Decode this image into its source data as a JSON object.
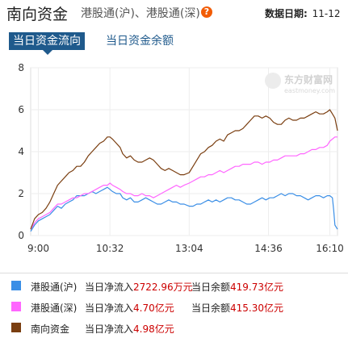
{
  "header": {
    "title": "南向资金",
    "subtitle": "港股通(沪)、港股通(深)",
    "help_icon_glyph": "?",
    "date_label": "数据日期:",
    "date_value": "11-12"
  },
  "tabs": [
    {
      "label": "当日资金流向",
      "active": true
    },
    {
      "label": "当日资金余额",
      "active": false
    }
  ],
  "watermark": {
    "cn": "东方财富网",
    "en": "eastmoney.com"
  },
  "legend": [
    {
      "name": "港股通(沪)",
      "flow_label": "当日净流入",
      "flow_value": "2722.96万元",
      "balance_label": "当日余额",
      "balance_value": "419.73亿元",
      "color": "#3a8ee6"
    },
    {
      "name": "港股通(深)",
      "flow_label": "当日净流入",
      "flow_value": "4.70亿元",
      "balance_label": "当日余额",
      "balance_value": "415.30亿元",
      "color": "#ff66ff"
    },
    {
      "name": "南向资金",
      "flow_label": "当日净流入",
      "flow_value": "4.98亿元",
      "balance_label": "",
      "balance_value": "",
      "color": "#7a3e10"
    }
  ],
  "chart_data": {
    "type": "line",
    "ylim": [
      0,
      8
    ],
    "yticks": [
      "0",
      "2",
      "4",
      "6",
      "8"
    ],
    "xlim": [
      0,
      240
    ],
    "xticks": [
      {
        "pos": 6,
        "label": "9:00"
      },
      {
        "pos": 62,
        "label": "10:32"
      },
      {
        "pos": 124,
        "label": "13:04"
      },
      {
        "pos": 186,
        "label": "14:36"
      },
      {
        "pos": 234,
        "label": "16:10"
      }
    ],
    "grid": true,
    "series": [
      {
        "name": "港股通(沪)",
        "color": "#3a8ee6",
        "points": [
          [
            0,
            0.2
          ],
          [
            3,
            0.5
          ],
          [
            6,
            0.7
          ],
          [
            9,
            0.8
          ],
          [
            12,
            0.9
          ],
          [
            15,
            1.0
          ],
          [
            18,
            1.2
          ],
          [
            21,
            1.4
          ],
          [
            24,
            1.3
          ],
          [
            27,
            1.5
          ],
          [
            30,
            1.6
          ],
          [
            33,
            1.7
          ],
          [
            36,
            1.9
          ],
          [
            39,
            1.9
          ],
          [
            42,
            1.9
          ],
          [
            45,
            2.0
          ],
          [
            48,
            2.1
          ],
          [
            51,
            2.0
          ],
          [
            54,
            2.1
          ],
          [
            57,
            2.2
          ],
          [
            60,
            2.3
          ],
          [
            62,
            2.2
          ],
          [
            64,
            2.1
          ],
          [
            67,
            2.0
          ],
          [
            70,
            2.0
          ],
          [
            72,
            1.8
          ],
          [
            75,
            1.7
          ],
          [
            78,
            1.8
          ],
          [
            81,
            1.6
          ],
          [
            84,
            1.6
          ],
          [
            87,
            1.7
          ],
          [
            90,
            1.8
          ],
          [
            93,
            1.7
          ],
          [
            96,
            1.6
          ],
          [
            99,
            1.5
          ],
          [
            102,
            1.5
          ],
          [
            105,
            1.6
          ],
          [
            108,
            1.7
          ],
          [
            111,
            1.6
          ],
          [
            114,
            1.6
          ],
          [
            117,
            1.5
          ],
          [
            120,
            1.5
          ],
          [
            124,
            1.4
          ],
          [
            127,
            1.4
          ],
          [
            130,
            1.5
          ],
          [
            133,
            1.5
          ],
          [
            136,
            1.6
          ],
          [
            139,
            1.7
          ],
          [
            142,
            1.6
          ],
          [
            145,
            1.7
          ],
          [
            148,
            1.6
          ],
          [
            151,
            1.7
          ],
          [
            154,
            1.8
          ],
          [
            157,
            1.8
          ],
          [
            160,
            1.7
          ],
          [
            163,
            1.7
          ],
          [
            166,
            1.6
          ],
          [
            169,
            1.5
          ],
          [
            172,
            1.5
          ],
          [
            175,
            1.6
          ],
          [
            178,
            1.7
          ],
          [
            181,
            1.8
          ],
          [
            184,
            1.7
          ],
          [
            187,
            1.8
          ],
          [
            190,
            1.8
          ],
          [
            193,
            1.9
          ],
          [
            196,
            2.0
          ],
          [
            199,
            1.9
          ],
          [
            202,
            2.0
          ],
          [
            205,
            2.0
          ],
          [
            208,
            1.9
          ],
          [
            211,
            1.9
          ],
          [
            214,
            1.8
          ],
          [
            217,
            1.7
          ],
          [
            220,
            1.8
          ],
          [
            223,
            1.9
          ],
          [
            226,
            1.9
          ],
          [
            229,
            1.8
          ],
          [
            232,
            1.9
          ],
          [
            234,
            1.9
          ],
          [
            236,
            1.8
          ],
          [
            237,
            1.2
          ],
          [
            238,
            0.5
          ],
          [
            240,
            0.3
          ]
        ]
      },
      {
        "name": "港股通(深)",
        "color": "#ff66ff",
        "points": [
          [
            0,
            0.3
          ],
          [
            3,
            0.6
          ],
          [
            6,
            0.8
          ],
          [
            9,
            0.9
          ],
          [
            12,
            1.0
          ],
          [
            15,
            1.1
          ],
          [
            18,
            1.3
          ],
          [
            21,
            1.5
          ],
          [
            24,
            1.5
          ],
          [
            27,
            1.6
          ],
          [
            30,
            1.7
          ],
          [
            33,
            1.8
          ],
          [
            36,
            1.8
          ],
          [
            39,
            1.9
          ],
          [
            42,
            2.0
          ],
          [
            45,
            2.0
          ],
          [
            48,
            2.1
          ],
          [
            51,
            2.2
          ],
          [
            54,
            2.3
          ],
          [
            57,
            2.4
          ],
          [
            60,
            2.4
          ],
          [
            62,
            2.5
          ],
          [
            64,
            2.4
          ],
          [
            67,
            2.3
          ],
          [
            70,
            2.2
          ],
          [
            72,
            2.1
          ],
          [
            75,
            2.0
          ],
          [
            78,
            2.0
          ],
          [
            81,
            1.9
          ],
          [
            84,
            1.9
          ],
          [
            87,
            2.0
          ],
          [
            90,
            1.9
          ],
          [
            93,
            1.9
          ],
          [
            96,
            1.8
          ],
          [
            99,
            1.9
          ],
          [
            102,
            2.0
          ],
          [
            105,
            2.1
          ],
          [
            108,
            2.2
          ],
          [
            111,
            2.3
          ],
          [
            114,
            2.4
          ],
          [
            117,
            2.3
          ],
          [
            120,
            2.4
          ],
          [
            124,
            2.5
          ],
          [
            127,
            2.6
          ],
          [
            130,
            2.7
          ],
          [
            133,
            2.8
          ],
          [
            136,
            2.8
          ],
          [
            139,
            2.9
          ],
          [
            142,
            2.9
          ],
          [
            145,
            3.0
          ],
          [
            148,
            3.1
          ],
          [
            151,
            3.0
          ],
          [
            154,
            3.1
          ],
          [
            157,
            3.2
          ],
          [
            160,
            3.3
          ],
          [
            163,
            3.3
          ],
          [
            166,
            3.4
          ],
          [
            169,
            3.4
          ],
          [
            172,
            3.4
          ],
          [
            175,
            3.5
          ],
          [
            178,
            3.5
          ],
          [
            181,
            3.4
          ],
          [
            184,
            3.5
          ],
          [
            187,
            3.5
          ],
          [
            190,
            3.6
          ],
          [
            193,
            3.6
          ],
          [
            196,
            3.7
          ],
          [
            199,
            3.8
          ],
          [
            202,
            3.8
          ],
          [
            205,
            3.8
          ],
          [
            208,
            3.8
          ],
          [
            211,
            3.9
          ],
          [
            214,
            3.9
          ],
          [
            217,
            4.0
          ],
          [
            220,
            4.1
          ],
          [
            223,
            4.1
          ],
          [
            226,
            4.2
          ],
          [
            229,
            4.2
          ],
          [
            232,
            4.3
          ],
          [
            234,
            4.5
          ],
          [
            236,
            4.6
          ],
          [
            238,
            4.7
          ],
          [
            240,
            4.7
          ]
        ]
      },
      {
        "name": "南向资金",
        "color": "#7a3e10",
        "points": [
          [
            0,
            0.3
          ],
          [
            3,
            0.8
          ],
          [
            6,
            1.0
          ],
          [
            9,
            1.1
          ],
          [
            12,
            1.3
          ],
          [
            15,
            1.6
          ],
          [
            18,
            2.0
          ],
          [
            21,
            2.4
          ],
          [
            24,
            2.6
          ],
          [
            27,
            2.8
          ],
          [
            30,
            3.0
          ],
          [
            33,
            3.1
          ],
          [
            36,
            3.3
          ],
          [
            39,
            3.3
          ],
          [
            42,
            3.5
          ],
          [
            45,
            3.8
          ],
          [
            48,
            4.0
          ],
          [
            51,
            4.2
          ],
          [
            54,
            4.4
          ],
          [
            57,
            4.5
          ],
          [
            60,
            4.7
          ],
          [
            62,
            4.7
          ],
          [
            64,
            4.6
          ],
          [
            67,
            4.4
          ],
          [
            70,
            4.2
          ],
          [
            72,
            3.9
          ],
          [
            75,
            3.7
          ],
          [
            78,
            3.8
          ],
          [
            81,
            3.6
          ],
          [
            84,
            3.5
          ],
          [
            87,
            3.5
          ],
          [
            90,
            3.6
          ],
          [
            93,
            3.7
          ],
          [
            96,
            3.6
          ],
          [
            99,
            3.4
          ],
          [
            102,
            3.2
          ],
          [
            105,
            3.1
          ],
          [
            108,
            3.2
          ],
          [
            111,
            3.1
          ],
          [
            114,
            3.0
          ],
          [
            117,
            2.9
          ],
          [
            120,
            2.9
          ],
          [
            124,
            3.0
          ],
          [
            127,
            3.3
          ],
          [
            130,
            3.6
          ],
          [
            133,
            3.9
          ],
          [
            136,
            4.0
          ],
          [
            139,
            4.2
          ],
          [
            142,
            4.3
          ],
          [
            145,
            4.5
          ],
          [
            148,
            4.6
          ],
          [
            151,
            4.5
          ],
          [
            154,
            4.8
          ],
          [
            157,
            4.9
          ],
          [
            160,
            5.0
          ],
          [
            163,
            5.0
          ],
          [
            166,
            5.1
          ],
          [
            169,
            5.3
          ],
          [
            172,
            5.5
          ],
          [
            175,
            5.7
          ],
          [
            178,
            5.7
          ],
          [
            181,
            5.6
          ],
          [
            184,
            5.7
          ],
          [
            187,
            5.6
          ],
          [
            190,
            5.4
          ],
          [
            193,
            5.3
          ],
          [
            196,
            5.3
          ],
          [
            199,
            5.5
          ],
          [
            202,
            5.6
          ],
          [
            205,
            5.5
          ],
          [
            208,
            5.5
          ],
          [
            211,
            5.6
          ],
          [
            214,
            5.6
          ],
          [
            217,
            5.7
          ],
          [
            220,
            5.8
          ],
          [
            223,
            5.9
          ],
          [
            226,
            5.8
          ],
          [
            229,
            5.8
          ],
          [
            232,
            5.9
          ],
          [
            234,
            6.0
          ],
          [
            236,
            5.8
          ],
          [
            238,
            5.6
          ],
          [
            240,
            5.0
          ]
        ]
      }
    ]
  }
}
